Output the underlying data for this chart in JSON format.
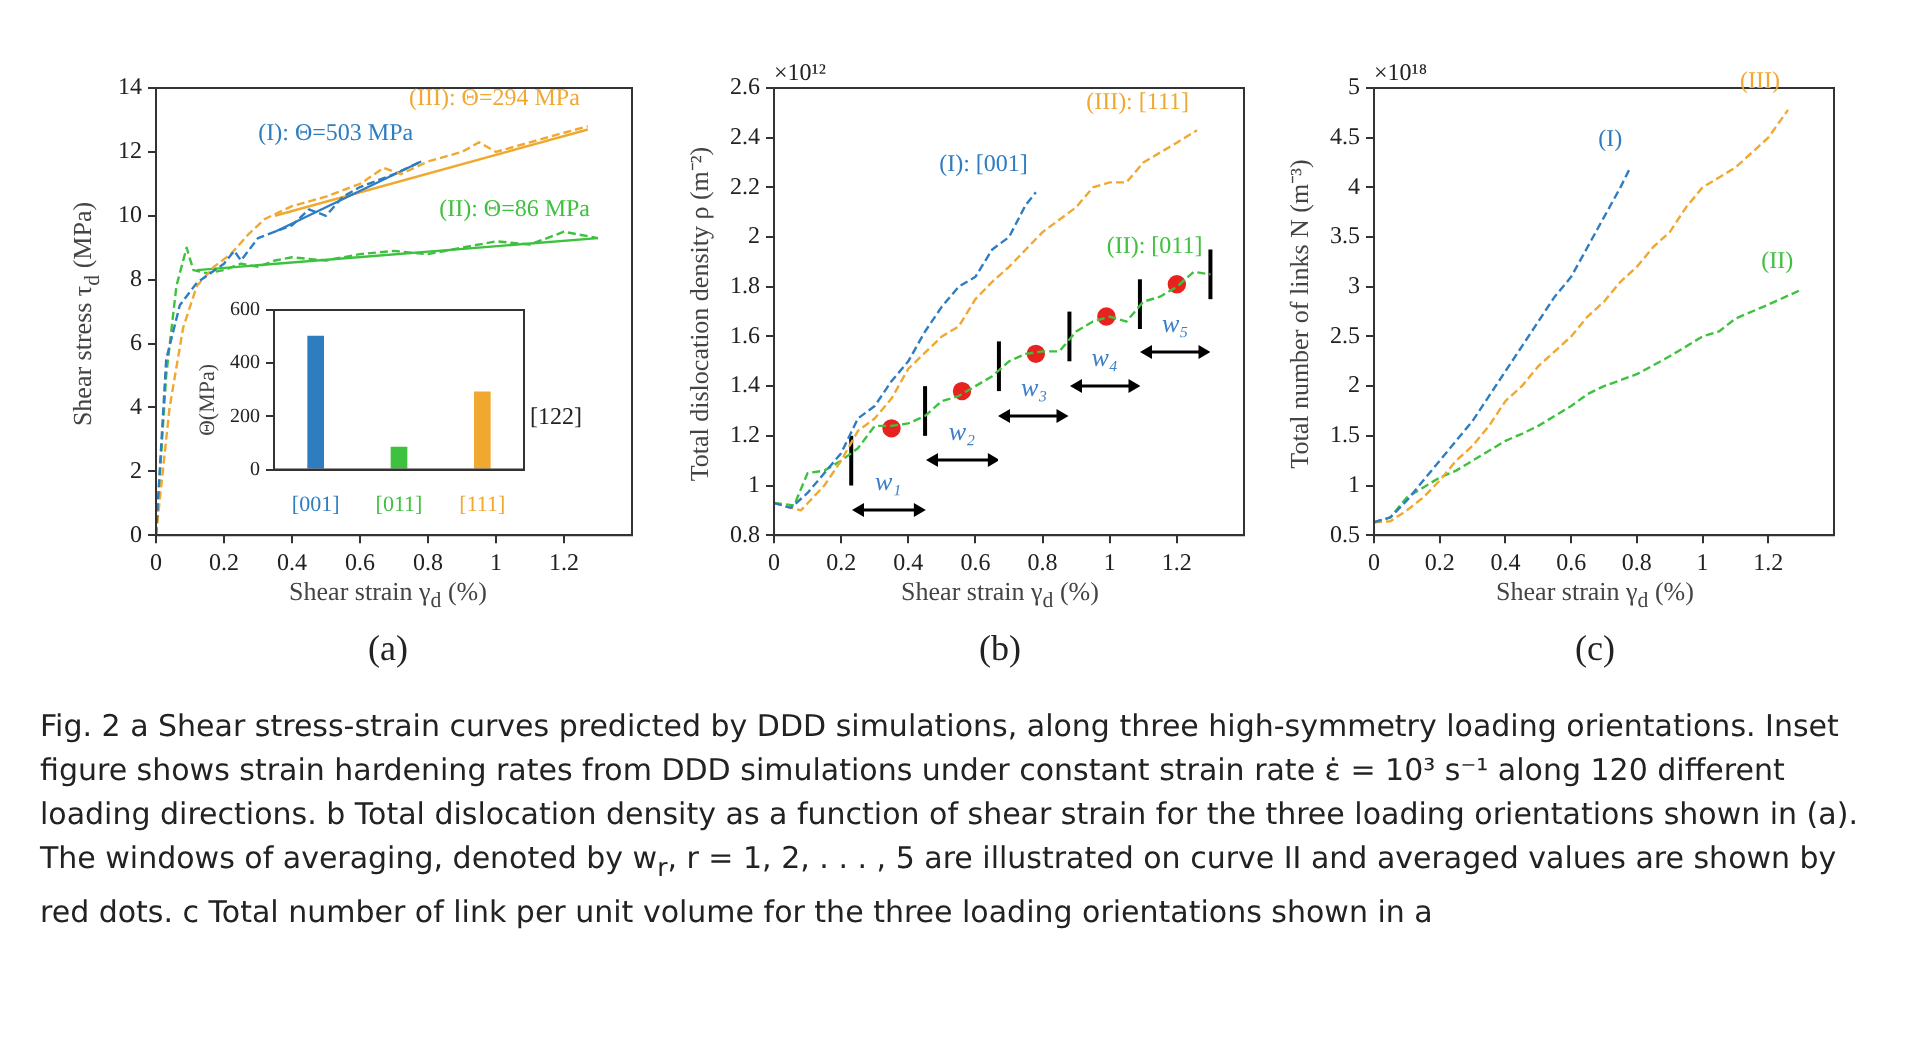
{
  "chart_data": [
    {
      "type": "line",
      "title": "(a)",
      "xlabel": "Shear strain γ$_{d}$ (%)",
      "ylabel": "Shear stress τ$_{d}$ (MPa)",
      "xlim": [
        0,
        1.4
      ],
      "xticks": [
        0,
        0.2,
        0.4,
        0.6,
        0.8,
        1,
        1.2
      ],
      "ylim": [
        0,
        14
      ],
      "yticks": [
        0,
        2,
        4,
        6,
        8,
        10,
        12,
        14
      ],
      "series": [
        {
          "name": "(I): Θ=503 MPa",
          "color": "#2f7dc1",
          "line_style": "dashed",
          "x": [
            0,
            0.03,
            0.07,
            0.12,
            0.16,
            0.2,
            0.23,
            0.25,
            0.3,
            0.35,
            0.4,
            0.45,
            0.5,
            0.55,
            0.6,
            0.65,
            0.7,
            0.78
          ],
          "values": [
            0,
            5.5,
            7.2,
            7.9,
            8.2,
            8.5,
            8.9,
            8.6,
            9.3,
            9.5,
            9.7,
            10.2,
            10.0,
            10.6,
            10.9,
            11.1,
            11.3,
            11.7
          ]
        },
        {
          "name": "(III): Θ=294 MPa",
          "color": "#f0a830",
          "line_style": "dashed",
          "x": [
            0,
            0.04,
            0.08,
            0.12,
            0.17,
            0.22,
            0.27,
            0.32,
            0.4,
            0.5,
            0.6,
            0.67,
            0.72,
            0.8,
            0.9,
            0.95,
            1.0,
            1.1,
            1.2,
            1.27
          ],
          "values": [
            0,
            4,
            6.5,
            7.8,
            8.4,
            8.8,
            9.4,
            9.9,
            10.3,
            10.6,
            11.0,
            11.5,
            11.3,
            11.7,
            12.0,
            12.3,
            12.0,
            12.3,
            12.6,
            12.8
          ]
        },
        {
          "name": "(II): Θ=86 MPa",
          "color": "#3ec13e",
          "line_style": "dashed",
          "x": [
            0,
            0.03,
            0.06,
            0.09,
            0.11,
            0.15,
            0.2,
            0.25,
            0.3,
            0.35,
            0.4,
            0.5,
            0.6,
            0.7,
            0.8,
            0.9,
            1.0,
            1.1,
            1.2,
            1.3
          ],
          "values": [
            0,
            5,
            7.8,
            9.0,
            8.3,
            8.2,
            8.3,
            8.5,
            8.4,
            8.6,
            8.7,
            8.6,
            8.8,
            8.9,
            8.8,
            9.0,
            9.2,
            9.1,
            9.5,
            9.3
          ]
        },
        {
          "type": "line",
          "color": "#2f7dc1",
          "line_style": "solid",
          "x": [
            0.35,
            0.78
          ],
          "values": [
            9.5,
            11.7
          ]
        },
        {
          "type": "line",
          "color": "#f0a830",
          "line_style": "solid",
          "x": [
            0.35,
            1.27
          ],
          "values": [
            10.0,
            12.7
          ]
        },
        {
          "type": "line",
          "color": "#3ec13e",
          "line_style": "solid",
          "x": [
            0.12,
            1.3
          ],
          "values": [
            8.3,
            9.3
          ]
        }
      ]
    },
    {
      "type": "line",
      "title": "(b)",
      "xlabel": "Shear strain γ$_{d}$ (%)",
      "ylabel": "Total dislocation density ρ (m⁻²)",
      "xlim": [
        0,
        1.4
      ],
      "xticks": [
        0,
        0.2,
        0.4,
        0.6,
        0.8,
        1,
        1.2
      ],
      "ylim": [
        0.8,
        2.6
      ],
      "yticks": [
        0.8,
        1,
        1.2,
        1.4,
        1.6,
        1.8,
        2,
        2.2,
        2.4,
        2.6
      ],
      "series": [
        {
          "name": "(I): [001]",
          "color": "#2f7dc1",
          "line_style": "dashed",
          "x": [
            0,
            0.05,
            0.1,
            0.2,
            0.25,
            0.3,
            0.35,
            0.4,
            0.45,
            0.5,
            0.55,
            0.6,
            0.65,
            0.7,
            0.75,
            0.78
          ],
          "values": [
            0.93,
            0.91,
            0.97,
            1.13,
            1.27,
            1.32,
            1.42,
            1.5,
            1.62,
            1.72,
            1.8,
            1.84,
            1.95,
            2.0,
            2.13,
            2.18
          ]
        },
        {
          "name": "(III): [111]",
          "color": "#f0a830",
          "line_style": "dashed",
          "x": [
            0,
            0.08,
            0.15,
            0.2,
            0.25,
            0.3,
            0.35,
            0.4,
            0.5,
            0.55,
            0.6,
            0.65,
            0.7,
            0.75,
            0.8,
            0.9,
            0.95,
            1.0,
            1.05,
            1.1,
            1.15,
            1.2,
            1.26
          ],
          "values": [
            0.93,
            0.9,
            1.0,
            1.1,
            1.22,
            1.27,
            1.35,
            1.47,
            1.6,
            1.64,
            1.75,
            1.82,
            1.88,
            1.95,
            2.02,
            2.12,
            2.2,
            2.22,
            2.22,
            2.3,
            2.34,
            2.38,
            2.43
          ]
        },
        {
          "name": "(II): [011]",
          "color": "#3ec13e",
          "line_style": "dashed",
          "x": [
            0,
            0.06,
            0.1,
            0.15,
            0.2,
            0.25,
            0.3,
            0.35,
            0.4,
            0.45,
            0.5,
            0.55,
            0.6,
            0.65,
            0.7,
            0.75,
            0.8,
            0.85,
            0.9,
            0.95,
            1.0,
            1.05,
            1.1,
            1.15,
            1.2,
            1.25,
            1.3
          ],
          "values": [
            0.93,
            0.92,
            1.05,
            1.06,
            1.1,
            1.15,
            1.24,
            1.24,
            1.25,
            1.28,
            1.34,
            1.36,
            1.4,
            1.44,
            1.5,
            1.53,
            1.54,
            1.54,
            1.62,
            1.66,
            1.68,
            1.66,
            1.74,
            1.76,
            1.8,
            1.86,
            1.85
          ]
        },
        {
          "type": "line",
          "line_style": "solid",
          "color": "#000000",
          "x": [
            0.23,
            0.23
          ],
          "values": [
            1.0,
            1.2
          ]
        },
        {
          "type": "line",
          "line_style": "solid",
          "color": "#000000",
          "x": [
            0.45,
            0.45
          ],
          "values": [
            1.2,
            1.4
          ]
        },
        {
          "type": "line",
          "line_style": "solid",
          "color": "#000000",
          "x": [
            0.67,
            0.67
          ],
          "values": [
            1.38,
            1.58
          ]
        },
        {
          "type": "line",
          "line_style": "solid",
          "color": "#000000",
          "x": [
            0.88,
            0.88
          ],
          "values": [
            1.5,
            1.7
          ]
        },
        {
          "type": "line",
          "line_style": "solid",
          "color": "#000000",
          "x": [
            1.09,
            1.09
          ],
          "values": [
            1.63,
            1.83
          ]
        },
        {
          "type": "line",
          "line_style": "solid",
          "color": "#000000",
          "x": [
            1.3,
            1.3
          ],
          "values": [
            1.75,
            1.95
          ]
        },
        {
          "type": "scatter",
          "marker": "circle",
          "color": "#e8231f",
          "x": [
            0.35,
            0.56,
            0.78,
            0.99,
            1.2
          ],
          "values": [
            1.23,
            1.38,
            1.53,
            1.68,
            1.81
          ]
        }
      ],
      "annotations": [
        "×10¹²",
        "w₁",
        "w₂",
        "w₃",
        "w₄",
        "w₅"
      ]
    },
    {
      "type": "line",
      "title": "(c)",
      "xlabel": "Shear strain γ$_{d}$ (%)",
      "ylabel": "Total number of links N (m⁻³)",
      "xlim": [
        0,
        1.4
      ],
      "xticks": [
        0,
        0.2,
        0.4,
        0.6,
        0.8,
        1,
        1.2
      ],
      "ylim": [
        0.5,
        5
      ],
      "yticks": [
        0.5,
        1,
        1.5,
        2,
        2.5,
        3,
        3.5,
        4,
        4.5,
        5
      ],
      "series": [
        {
          "name": "(I)",
          "color": "#2f7dc1",
          "line_style": "dashed",
          "x": [
            0,
            0.05,
            0.1,
            0.15,
            0.2,
            0.25,
            0.3,
            0.35,
            0.4,
            0.45,
            0.5,
            0.55,
            0.6,
            0.65,
            0.7,
            0.75,
            0.78
          ],
          "values": [
            0.63,
            0.68,
            0.85,
            1.05,
            1.25,
            1.45,
            1.65,
            1.9,
            2.15,
            2.4,
            2.65,
            2.9,
            3.1,
            3.4,
            3.7,
            4.0,
            4.2
          ]
        },
        {
          "name": "(III)",
          "color": "#f0a830",
          "line_style": "dashed",
          "x": [
            0,
            0.05,
            0.1,
            0.15,
            0.2,
            0.25,
            0.3,
            0.35,
            0.4,
            0.45,
            0.5,
            0.55,
            0.6,
            0.65,
            0.7,
            0.75,
            0.8,
            0.85,
            0.9,
            0.95,
            1.0,
            1.05,
            1.1,
            1.15,
            1.2,
            1.26
          ],
          "values": [
            0.63,
            0.64,
            0.75,
            0.88,
            1.05,
            1.25,
            1.4,
            1.6,
            1.85,
            2.0,
            2.2,
            2.35,
            2.5,
            2.7,
            2.85,
            3.05,
            3.2,
            3.4,
            3.55,
            3.8,
            4.0,
            4.1,
            4.2,
            4.35,
            4.5,
            4.78
          ]
        },
        {
          "name": "(II)",
          "color": "#3ec13e",
          "line_style": "dashed",
          "x": [
            0,
            0.05,
            0.1,
            0.15,
            0.2,
            0.25,
            0.3,
            0.35,
            0.4,
            0.45,
            0.5,
            0.55,
            0.6,
            0.65,
            0.7,
            0.8,
            0.9,
            1.0,
            1.05,
            1.1,
            1.2,
            1.3
          ],
          "values": [
            0.63,
            0.68,
            0.88,
            0.98,
            1.08,
            1.15,
            1.25,
            1.35,
            1.45,
            1.52,
            1.6,
            1.7,
            1.8,
            1.92,
            2.0,
            2.12,
            2.3,
            2.5,
            2.55,
            2.68,
            2.82,
            2.97
          ]
        }
      ],
      "annotations": [
        "×10¹⁸"
      ]
    },
    {
      "type": "bar",
      "ylabel": "Θ(MPa)",
      "categories": [
        "[001]",
        "[011]",
        "[111]"
      ],
      "values": [
        503,
        86,
        294
      ],
      "colors": [
        "#2f7dc1",
        "#3ec13e",
        "#f0a830"
      ],
      "ylim": [
        0,
        600
      ],
      "yticks": [
        0,
        200,
        400,
        600
      ],
      "annotations": [
        "[122]"
      ]
    },
    {
      "type": "other",
      "annotations": [
        "Fig. 2  a Shear stress-strain curves predicted by DDD simulations, along three high-symmetry loading orientations. Inset figure shows strain hardening rates from DDD simulations under constant strain rate ε̇ = 10³ s⁻¹ along 120 different loading directions. b Total dislocation density as a function of shear strain for the three loading orientations shown in (a). The windows of averaging, denoted by w$_{r}$, r = 1, 2, . . . , 5 are illustrated on curve II and averaged values are shown by red dots. c Total number of link per unit volume for the three loading orientations shown in a"
      ]
    }
  ]
}
